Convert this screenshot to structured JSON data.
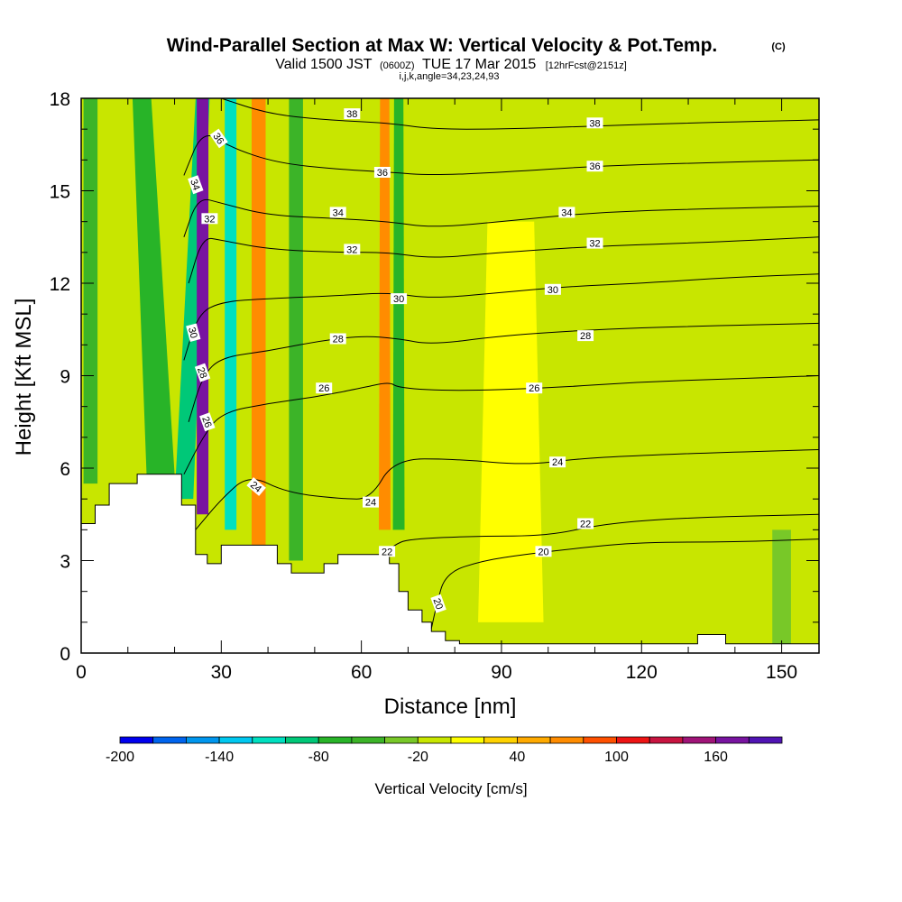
{
  "title": "Wind-Parallel Section at Max W: Vertical Velocity & Pot.Temp.",
  "title_units": "(C)",
  "subtitle": {
    "valid": "Valid 1500 JST",
    "utc": "(0600Z)",
    "date": "TUE 17 Mar 2015",
    "fcst": "[12hrFcst@2151z]"
  },
  "indices": "i,j,k,angle=34,23,24,93",
  "chart_data": {
    "type": "heatmap",
    "xlabel": "Distance [nm]",
    "ylabel": "Height [Kft MSL]",
    "xlim": [
      0,
      158
    ],
    "ylim": [
      0,
      18
    ],
    "x_ticks": [
      0,
      30,
      60,
      90,
      120,
      150
    ],
    "y_ticks": [
      0,
      3,
      6,
      9,
      12,
      15,
      18
    ],
    "x_tick_labels": [
      "0",
      "30",
      "60",
      "90",
      "120",
      "150"
    ],
    "y_tick_labels": [
      "0",
      "3",
      "6",
      "9",
      "12",
      "15",
      "18"
    ],
    "background_velocity_cms": -10,
    "velocity_bands": [
      {
        "x_center": 2,
        "x_width_bottom": 3,
        "x_width_top": 3,
        "x_shift_top": 0,
        "y_bottom": 5.5,
        "y_top": 18,
        "w": -50
      },
      {
        "x_center": 17,
        "x_width_bottom": 6,
        "x_width_top": 4,
        "x_shift_top": -4,
        "y_bottom": 5.8,
        "y_top": 18,
        "w": -70
      },
      {
        "x_center": 22,
        "x_width_bottom": 4,
        "x_width_top": 3,
        "x_shift_top": 4,
        "y_bottom": 5,
        "y_top": 18,
        "w": -95
      },
      {
        "x_center": 26,
        "x_width_bottom": 2.5,
        "x_width_top": 2.5,
        "x_shift_top": 0,
        "y_bottom": 4.5,
        "y_top": 18,
        "w": 175
      },
      {
        "x_center": 32,
        "x_width_bottom": 2.5,
        "x_width_top": 2.5,
        "x_shift_top": 0,
        "y_bottom": 4,
        "y_top": 18,
        "w": -110
      },
      {
        "x_center": 38,
        "x_width_bottom": 3,
        "x_width_top": 3,
        "x_shift_top": 0,
        "y_bottom": 3.5,
        "y_top": 18,
        "w": 70
      },
      {
        "x_center": 46,
        "x_width_bottom": 3,
        "x_width_top": 3,
        "x_shift_top": 0,
        "y_bottom": 3,
        "y_top": 18,
        "w": -60
      },
      {
        "x_center": 65,
        "x_width_bottom": 2.5,
        "x_width_top": 2,
        "x_shift_top": 0,
        "y_bottom": 4,
        "y_top": 18,
        "w": 65
      },
      {
        "x_center": 68,
        "x_width_bottom": 2.5,
        "x_width_top": 2,
        "x_shift_top": 0,
        "y_bottom": 4,
        "y_top": 18,
        "w": -75
      },
      {
        "x_center": 92,
        "x_width_bottom": 14,
        "x_width_top": 10,
        "x_shift_top": 0,
        "y_bottom": 1,
        "y_top": 14,
        "w": 15
      },
      {
        "x_center": 150,
        "x_width_bottom": 4,
        "x_width_top": 4,
        "x_shift_top": 0,
        "y_bottom": 0,
        "y_top": 4,
        "w": -30
      }
    ],
    "terrain_kft": [
      {
        "x": 0,
        "h": 4.2
      },
      {
        "x": 3,
        "h": 4.8
      },
      {
        "x": 6,
        "h": 5.5
      },
      {
        "x": 12,
        "h": 5.8
      },
      {
        "x": 18,
        "h": 5.8
      },
      {
        "x": 21.5,
        "h": 4.8
      },
      {
        "x": 24.5,
        "h": 3.2
      },
      {
        "x": 27,
        "h": 2.9
      },
      {
        "x": 30,
        "h": 3.5
      },
      {
        "x": 36,
        "h": 3.5
      },
      {
        "x": 42,
        "h": 2.9
      },
      {
        "x": 45,
        "h": 2.6
      },
      {
        "x": 50,
        "h": 2.6
      },
      {
        "x": 52,
        "h": 2.9
      },
      {
        "x": 55,
        "h": 3.2
      },
      {
        "x": 63,
        "h": 3.2
      },
      {
        "x": 66,
        "h": 2.9
      },
      {
        "x": 68,
        "h": 2.0
      },
      {
        "x": 70,
        "h": 1.4
      },
      {
        "x": 73,
        "h": 1.0
      },
      {
        "x": 75,
        "h": 0.7
      },
      {
        "x": 78,
        "h": 0.4
      },
      {
        "x": 81,
        "h": 0.3
      },
      {
        "x": 132,
        "h": 0.6
      },
      {
        "x": 138,
        "h": 0.3
      },
      {
        "x": 158,
        "h": 0.3
      }
    ],
    "theta_isotherms_c": [
      {
        "value": 20,
        "label": "20",
        "pts": [
          [
            75,
            0.8
          ],
          [
            76,
            1.5
          ],
          [
            78,
            2.6
          ],
          [
            86,
            3.0
          ],
          [
            95,
            3.2
          ],
          [
            106,
            3.4
          ],
          [
            120,
            3.6
          ],
          [
            140,
            3.6
          ],
          [
            158,
            3.7
          ]
        ]
      },
      {
        "value": 22,
        "label": "22",
        "pts": [
          [
            65,
            3.2
          ],
          [
            67,
            3.5
          ],
          [
            70,
            3.7
          ],
          [
            85,
            3.8
          ],
          [
            100,
            3.8
          ],
          [
            112,
            4.2
          ],
          [
            130,
            4.4
          ],
          [
            158,
            4.5
          ]
        ]
      },
      {
        "value": 24,
        "label": "24",
        "pts": [
          [
            24.5,
            4.0
          ],
          [
            30,
            5.0
          ],
          [
            36,
            5.8
          ],
          [
            44,
            5.2
          ],
          [
            56,
            5.0
          ],
          [
            62,
            5.0
          ],
          [
            67,
            6.3
          ],
          [
            80,
            6.3
          ],
          [
            95,
            6.1
          ],
          [
            106,
            6.3
          ],
          [
            118,
            6.4
          ],
          [
            135,
            6.5
          ],
          [
            158,
            6.6
          ]
        ]
      },
      {
        "value": 26,
        "label": "26",
        "pts": [
          [
            22,
            5.8
          ],
          [
            26,
            7.0
          ],
          [
            30,
            7.8
          ],
          [
            40,
            8.1
          ],
          [
            50,
            8.3
          ],
          [
            60,
            8.6
          ],
          [
            66,
            8.8
          ],
          [
            68,
            8.6
          ],
          [
            80,
            8.5
          ],
          [
            100,
            8.6
          ],
          [
            120,
            8.8
          ],
          [
            140,
            8.9
          ],
          [
            158,
            9.0
          ]
        ]
      },
      {
        "value": 28,
        "label": "28",
        "pts": [
          [
            23,
            7.5
          ],
          [
            26,
            9.0
          ],
          [
            30,
            9.6
          ],
          [
            40,
            9.8
          ],
          [
            50,
            10.1
          ],
          [
            60,
            10.3
          ],
          [
            68,
            10.2
          ],
          [
            75,
            10.0
          ],
          [
            90,
            10.3
          ],
          [
            110,
            10.5
          ],
          [
            130,
            10.6
          ],
          [
            158,
            10.7
          ]
        ]
      },
      {
        "value": 30,
        "label": "30",
        "pts": [
          [
            22,
            9.5
          ],
          [
            25,
            11.0
          ],
          [
            30,
            11.4
          ],
          [
            40,
            11.5
          ],
          [
            55,
            11.6
          ],
          [
            66,
            11.7
          ],
          [
            75,
            11.5
          ],
          [
            90,
            11.7
          ],
          [
            105,
            11.9
          ],
          [
            120,
            12.0
          ],
          [
            140,
            12.2
          ],
          [
            158,
            12.3
          ]
        ]
      },
      {
        "value": 32,
        "label": "32",
        "pts": [
          [
            23,
            12.0
          ],
          [
            26,
            13.5
          ],
          [
            30,
            13.4
          ],
          [
            40,
            13.1
          ],
          [
            55,
            13.0
          ],
          [
            66,
            13.0
          ],
          [
            75,
            12.8
          ],
          [
            90,
            13.0
          ],
          [
            110,
            13.2
          ],
          [
            130,
            13.3
          ],
          [
            158,
            13.5
          ]
        ]
      },
      {
        "value": 34,
        "label": "34",
        "pts": [
          [
            22,
            13.5
          ],
          [
            25,
            14.8
          ],
          [
            30,
            14.6
          ],
          [
            40,
            14.2
          ],
          [
            55,
            14.1
          ],
          [
            66,
            14.0
          ],
          [
            75,
            13.8
          ],
          [
            90,
            14.0
          ],
          [
            110,
            14.3
          ],
          [
            130,
            14.4
          ],
          [
            158,
            14.5
          ]
        ]
      },
      {
        "value": 36,
        "label": "36",
        "pts": [
          [
            22,
            15.5
          ],
          [
            26,
            17.0
          ],
          [
            32,
            16.4
          ],
          [
            42,
            15.9
          ],
          [
            55,
            15.7
          ],
          [
            66,
            15.6
          ],
          [
            75,
            15.5
          ],
          [
            90,
            15.6
          ],
          [
            110,
            15.8
          ],
          [
            130,
            15.9
          ],
          [
            158,
            16.0
          ]
        ]
      },
      {
        "value": 38,
        "label": "38",
        "pts": [
          [
            30,
            18.0
          ],
          [
            40,
            17.5
          ],
          [
            52,
            17.3
          ],
          [
            66,
            17.2
          ],
          [
            75,
            17.0
          ],
          [
            90,
            17.0
          ],
          [
            110,
            17.1
          ],
          [
            130,
            17.2
          ],
          [
            158,
            17.3
          ]
        ]
      }
    ],
    "contour_labels": [
      {
        "text": "36",
        "x": 29.5,
        "y": 16.7,
        "rot": 55
      },
      {
        "text": "38",
        "x": 58,
        "y": 17.5,
        "rot": 0
      },
      {
        "text": "38",
        "x": 110,
        "y": 17.2,
        "rot": 0
      },
      {
        "text": "36",
        "x": 64.5,
        "y": 15.6,
        "rot": 0
      },
      {
        "text": "36",
        "x": 110,
        "y": 15.8,
        "rot": 0
      },
      {
        "text": "34",
        "x": 24.5,
        "y": 15.2,
        "rot": 70
      },
      {
        "text": "34",
        "x": 55,
        "y": 14.3,
        "rot": 0
      },
      {
        "text": "34",
        "x": 104,
        "y": 14.3,
        "rot": 0
      },
      {
        "text": "32",
        "x": 27.5,
        "y": 14.1,
        "rot": 0
      },
      {
        "text": "32",
        "x": 58,
        "y": 13.1,
        "rot": 0
      },
      {
        "text": "32",
        "x": 110,
        "y": 13.3,
        "rot": 0
      },
      {
        "text": "30",
        "x": 68,
        "y": 11.5,
        "rot": 0
      },
      {
        "text": "30",
        "x": 101,
        "y": 11.8,
        "rot": 0
      },
      {
        "text": "30",
        "x": 24,
        "y": 10.4,
        "rot": 75
      },
      {
        "text": "28",
        "x": 55,
        "y": 10.2,
        "rot": 0
      },
      {
        "text": "28",
        "x": 108,
        "y": 10.3,
        "rot": 0
      },
      {
        "text": "28",
        "x": 26,
        "y": 9.1,
        "rot": 70
      },
      {
        "text": "26",
        "x": 52,
        "y": 8.6,
        "rot": 0
      },
      {
        "text": "26",
        "x": 97,
        "y": 8.6,
        "rot": 0
      },
      {
        "text": "26",
        "x": 27,
        "y": 7.5,
        "rot": 70
      },
      {
        "text": "24",
        "x": 37.5,
        "y": 5.4,
        "rot": 40
      },
      {
        "text": "24",
        "x": 62,
        "y": 4.9,
        "rot": 0
      },
      {
        "text": "24",
        "x": 102,
        "y": 6.2,
        "rot": 0
      },
      {
        "text": "22",
        "x": 65.5,
        "y": 3.3,
        "rot": 0
      },
      {
        "text": "22",
        "x": 108,
        "y": 4.2,
        "rot": 0
      },
      {
        "text": "20",
        "x": 76.5,
        "y": 1.6,
        "rot": 70
      },
      {
        "text": "20",
        "x": 99,
        "y": 3.3,
        "rot": 0
      }
    ]
  },
  "colorbar": {
    "label": "Vertical Velocity [cm/s]",
    "min": -200,
    "max": 200,
    "step": 20,
    "tick_values": [
      -200,
      -140,
      -80,
      -20,
      40,
      100,
      160
    ],
    "tick_labels": [
      "-200",
      "-140",
      "-80",
      "-20",
      "40",
      "100",
      "160"
    ],
    "colors": [
      "#0000ee",
      "#0064ee",
      "#0096ee",
      "#00c8f0",
      "#00e0c0",
      "#00c878",
      "#28b428",
      "#3cb428",
      "#78c828",
      "#c8e600",
      "#ffff00",
      "#ffd200",
      "#ffaa00",
      "#ff8c00",
      "#ff5000",
      "#ee1414",
      "#c81440",
      "#a01478",
      "#7814a0",
      "#5014b4"
    ]
  }
}
